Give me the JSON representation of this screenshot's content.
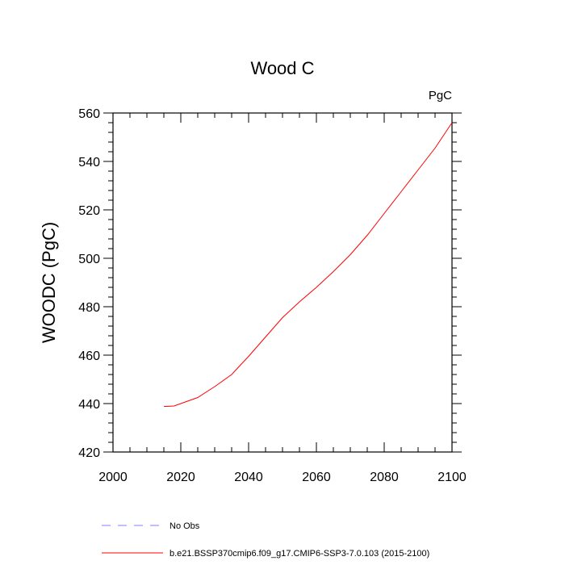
{
  "chart_data": {
    "type": "line",
    "title": "Wood C",
    "units_label": "PgC",
    "xlabel": "",
    "ylabel": "WOODC  (PgC)",
    "xlim": [
      2000,
      2100
    ],
    "ylim": [
      420,
      560
    ],
    "x_ticks": [
      2000,
      2020,
      2040,
      2060,
      2080,
      2100
    ],
    "y_ticks": [
      420,
      440,
      460,
      480,
      500,
      520,
      540,
      560
    ],
    "series": [
      {
        "name": "b.e21.BSSP370cmip6.f09_g17.CMIP6-SSP3-7.0.103 (2015-2100)",
        "color": "#ff0000",
        "style": "solid",
        "x": [
          2015,
          2018,
          2020,
          2025,
          2030,
          2035,
          2040,
          2045,
          2050,
          2055,
          2060,
          2065,
          2070,
          2075,
          2080,
          2085,
          2090,
          2095,
          2100
        ],
        "y": [
          438.8,
          439,
          440,
          442.5,
          447,
          452,
          459.5,
          467.5,
          475.5,
          482,
          488,
          494.5,
          501.5,
          509.5,
          518.5,
          527.5,
          536.5,
          545.5,
          556
        ]
      },
      {
        "name": "No Obs",
        "color": "#8080ff",
        "style": "dashed",
        "x": [],
        "y": []
      }
    ]
  }
}
